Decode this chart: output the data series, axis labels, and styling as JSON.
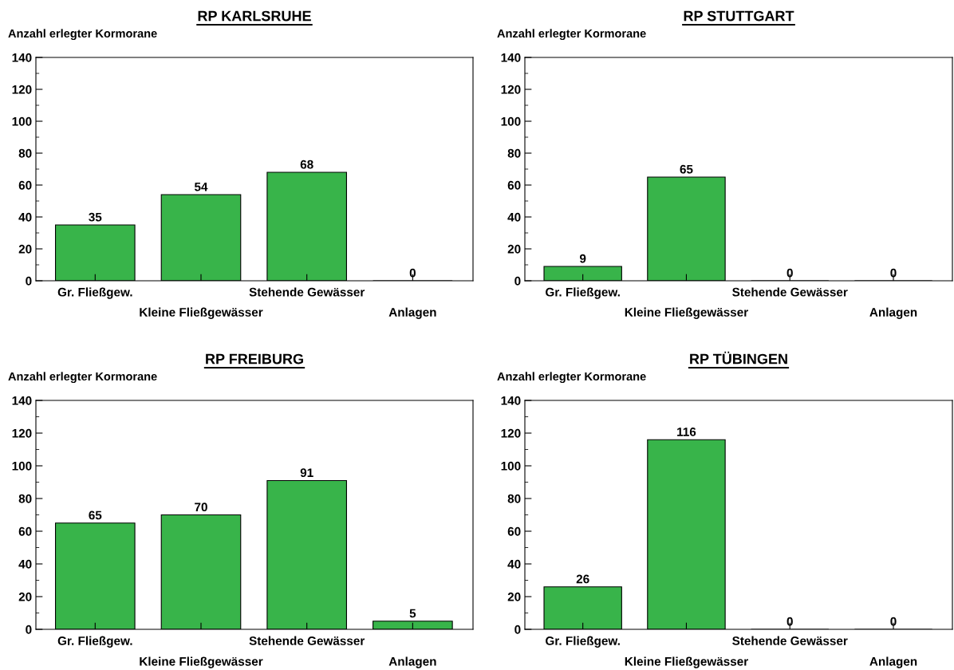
{
  "chart_data": [
    {
      "type": "bar",
      "title": "RP KARLSRUHE",
      "ylabel": "Anzahl erlegter Kormorane",
      "categories": [
        "Gr. Fließgew.",
        "Kleine Fließgewässer",
        "Stehende Gewässer",
        "Anlagen"
      ],
      "values": [
        35,
        54,
        68,
        0
      ],
      "color": "#38b44a",
      "ylim": [
        0,
        140
      ],
      "yticks": [
        0,
        20,
        40,
        60,
        80,
        100,
        120,
        140
      ],
      "data_labels": true,
      "grid": false
    },
    {
      "type": "bar",
      "title": "RP STUTTGART",
      "ylabel": "Anzahl erlegter Kormorane",
      "categories": [
        "Gr. Fließgew.",
        "Kleine Fließgewässer",
        "Stehende Gewässer",
        "Anlagen"
      ],
      "values": [
        9,
        65,
        0,
        0
      ],
      "color": "#38b44a",
      "ylim": [
        0,
        140
      ],
      "yticks": [
        0,
        20,
        40,
        60,
        80,
        100,
        120,
        140
      ],
      "data_labels": true,
      "grid": false
    },
    {
      "type": "bar",
      "title": "RP FREIBURG",
      "ylabel": "Anzahl erlegter Kormorane",
      "categories": [
        "Gr. Fließgew.",
        "Kleine Fließgewässer",
        "Stehende Gewässer",
        "Anlagen"
      ],
      "values": [
        65,
        70,
        91,
        5
      ],
      "color": "#38b44a",
      "ylim": [
        0,
        140
      ],
      "yticks": [
        0,
        20,
        40,
        60,
        80,
        100,
        120,
        140
      ],
      "data_labels": true,
      "grid": false
    },
    {
      "type": "bar",
      "title": "RP TÜBINGEN",
      "ylabel": "Anzahl erlegter Kormorane",
      "categories": [
        "Gr. Fließgew.",
        "Kleine Fließgewässer",
        "Stehende Gewässer",
        "Anlagen"
      ],
      "values": [
        26,
        116,
        0,
        0
      ],
      "color": "#38b44a",
      "ylim": [
        0,
        140
      ],
      "yticks": [
        0,
        20,
        40,
        60,
        80,
        100,
        120,
        140
      ],
      "data_labels": true,
      "grid": false
    }
  ]
}
